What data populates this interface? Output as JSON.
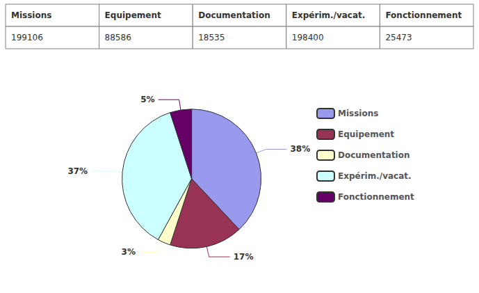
{
  "chart_data": [
    {
      "type": "table",
      "categories": [
        "Missions",
        "Equipement",
        "Documentation",
        "Expérim./vacat.",
        "Fonctionnement"
      ],
      "values": [
        199106,
        88586,
        18535,
        198400,
        25473
      ]
    },
    {
      "type": "pie",
      "categories": [
        "Missions",
        "Equipement",
        "Documentation",
        "Expérim./vacat.",
        "Fonctionnement"
      ],
      "values": [
        38,
        17,
        3,
        37,
        5
      ],
      "value_labels": [
        "38%",
        "17%",
        "3%",
        "37%",
        "5%"
      ],
      "colors": [
        "#9999EE",
        "#993355",
        "#FFFFCC",
        "#CCFFFF",
        "#660066"
      ],
      "data_labels": true,
      "legend": "right"
    }
  ]
}
